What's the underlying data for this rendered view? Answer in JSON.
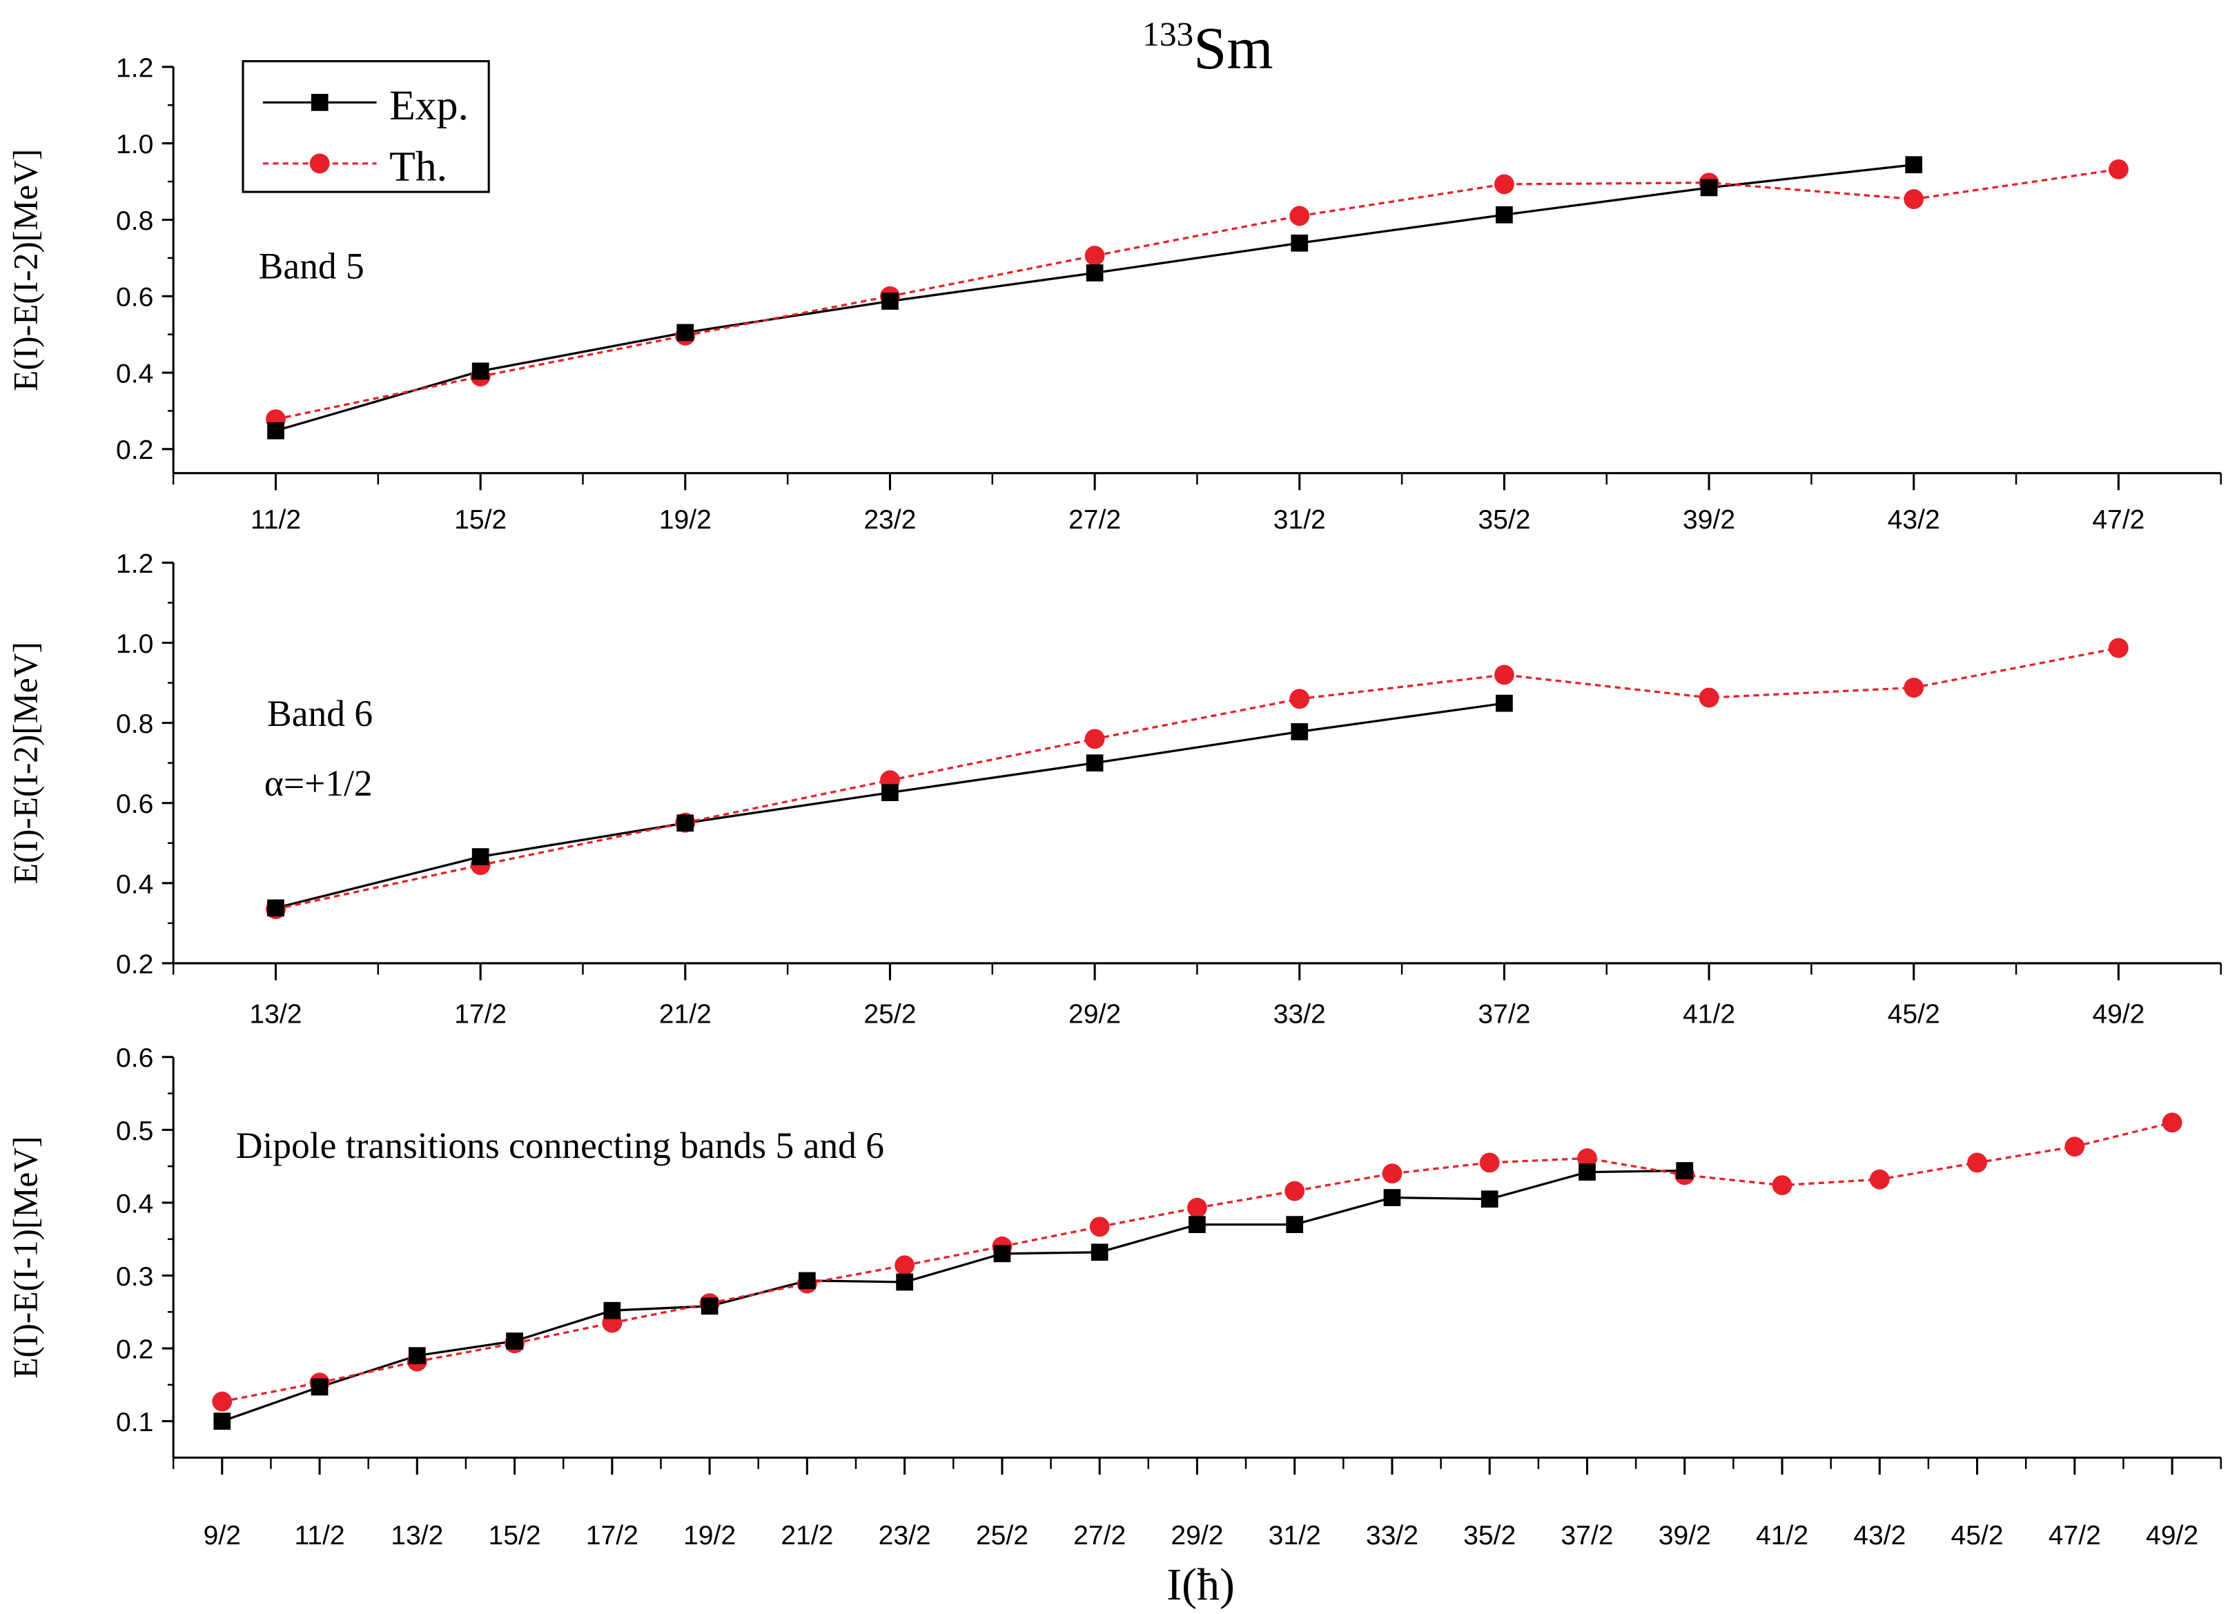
{
  "chart_data": {
    "type": "line",
    "title": "Sm",
    "title_superscript": "133",
    "xlabel": "I(ħ)",
    "legend": {
      "position": "top-left",
      "entries": [
        "Exp.",
        "Th."
      ]
    },
    "colors": {
      "exp": "#000000",
      "th": "#e8202a"
    },
    "panels": [
      {
        "annotations": [
          "Band 5"
        ],
        "ylabel": "E(I)-E(I-2)[MeV]",
        "ylim": [
          0.137,
          1.2
        ],
        "yticks": [
          "0.2",
          "0.4",
          "0.6",
          "0.8",
          "1.0",
          "1.2"
        ],
        "categories": [
          "11/2",
          "15/2",
          "19/2",
          "23/2",
          "27/2",
          "31/2",
          "35/2",
          "39/2",
          "43/2",
          "47/2"
        ],
        "series": [
          {
            "name": "Exp.",
            "values": [
              0.248,
              0.404,
              0.505,
              0.587,
              0.661,
              0.739,
              0.813,
              0.884,
              0.944,
              null
            ]
          },
          {
            "name": "Th.",
            "values": [
              0.278,
              0.39,
              0.497,
              0.6,
              0.706,
              0.81,
              0.893,
              0.897,
              0.854,
              0.932
            ]
          }
        ]
      },
      {
        "annotations": [
          "Band 6",
          "α=+1/2"
        ],
        "ylabel": "E(I)-E(I-2)[MeV]",
        "ylim": [
          0.2,
          1.2
        ],
        "yticks": [
          "0.2",
          "0.4",
          "0.6",
          "0.8",
          "1.0",
          "1.2"
        ],
        "categories": [
          "13/2",
          "17/2",
          "21/2",
          "25/2",
          "29/2",
          "33/2",
          "37/2",
          "41/2",
          "45/2",
          "49/2"
        ],
        "series": [
          {
            "name": "Exp.",
            "values": [
              0.338,
              0.466,
              0.55,
              0.626,
              0.7,
              0.778,
              0.849,
              null,
              null,
              null
            ]
          },
          {
            "name": "Th.",
            "values": [
              0.335,
              0.445,
              0.551,
              0.657,
              0.76,
              0.86,
              0.92,
              0.863,
              0.888,
              0.987
            ]
          }
        ]
      },
      {
        "annotations": [
          "Dipole transitions connecting bands 5 and 6"
        ],
        "ylabel": "E(I)-E(I-1)[MeV]",
        "ylim": [
          0.05,
          0.6
        ],
        "yticks": [
          "0.1",
          "0.2",
          "0.3",
          "0.4",
          "0.5",
          "0.6"
        ],
        "categories": [
          "9/2",
          "11/2",
          "13/2",
          "15/2",
          "17/2",
          "19/2",
          "21/2",
          "23/2",
          "25/2",
          "27/2",
          "29/2",
          "31/2",
          "33/2",
          "35/2",
          "37/2",
          "39/2",
          "41/2",
          "43/2",
          "45/2",
          "47/2",
          "49/2"
        ],
        "series": [
          {
            "name": "Exp.",
            "values": [
              0.1,
              0.147,
              0.19,
              0.21,
              0.252,
              0.258,
              0.293,
              0.291,
              0.33,
              0.332,
              0.37,
              0.37,
              0.407,
              0.405,
              0.442,
              0.444,
              null,
              null,
              null,
              null,
              null
            ]
          },
          {
            "name": "Th.",
            "values": [
              0.127,
              0.153,
              0.182,
              0.207,
              0.235,
              0.262,
              0.289,
              0.314,
              0.34,
              0.367,
              0.393,
              0.416,
              0.44,
              0.455,
              0.461,
              0.438,
              0.424,
              0.432,
              0.455,
              0.477,
              0.51
            ]
          }
        ]
      }
    ]
  }
}
